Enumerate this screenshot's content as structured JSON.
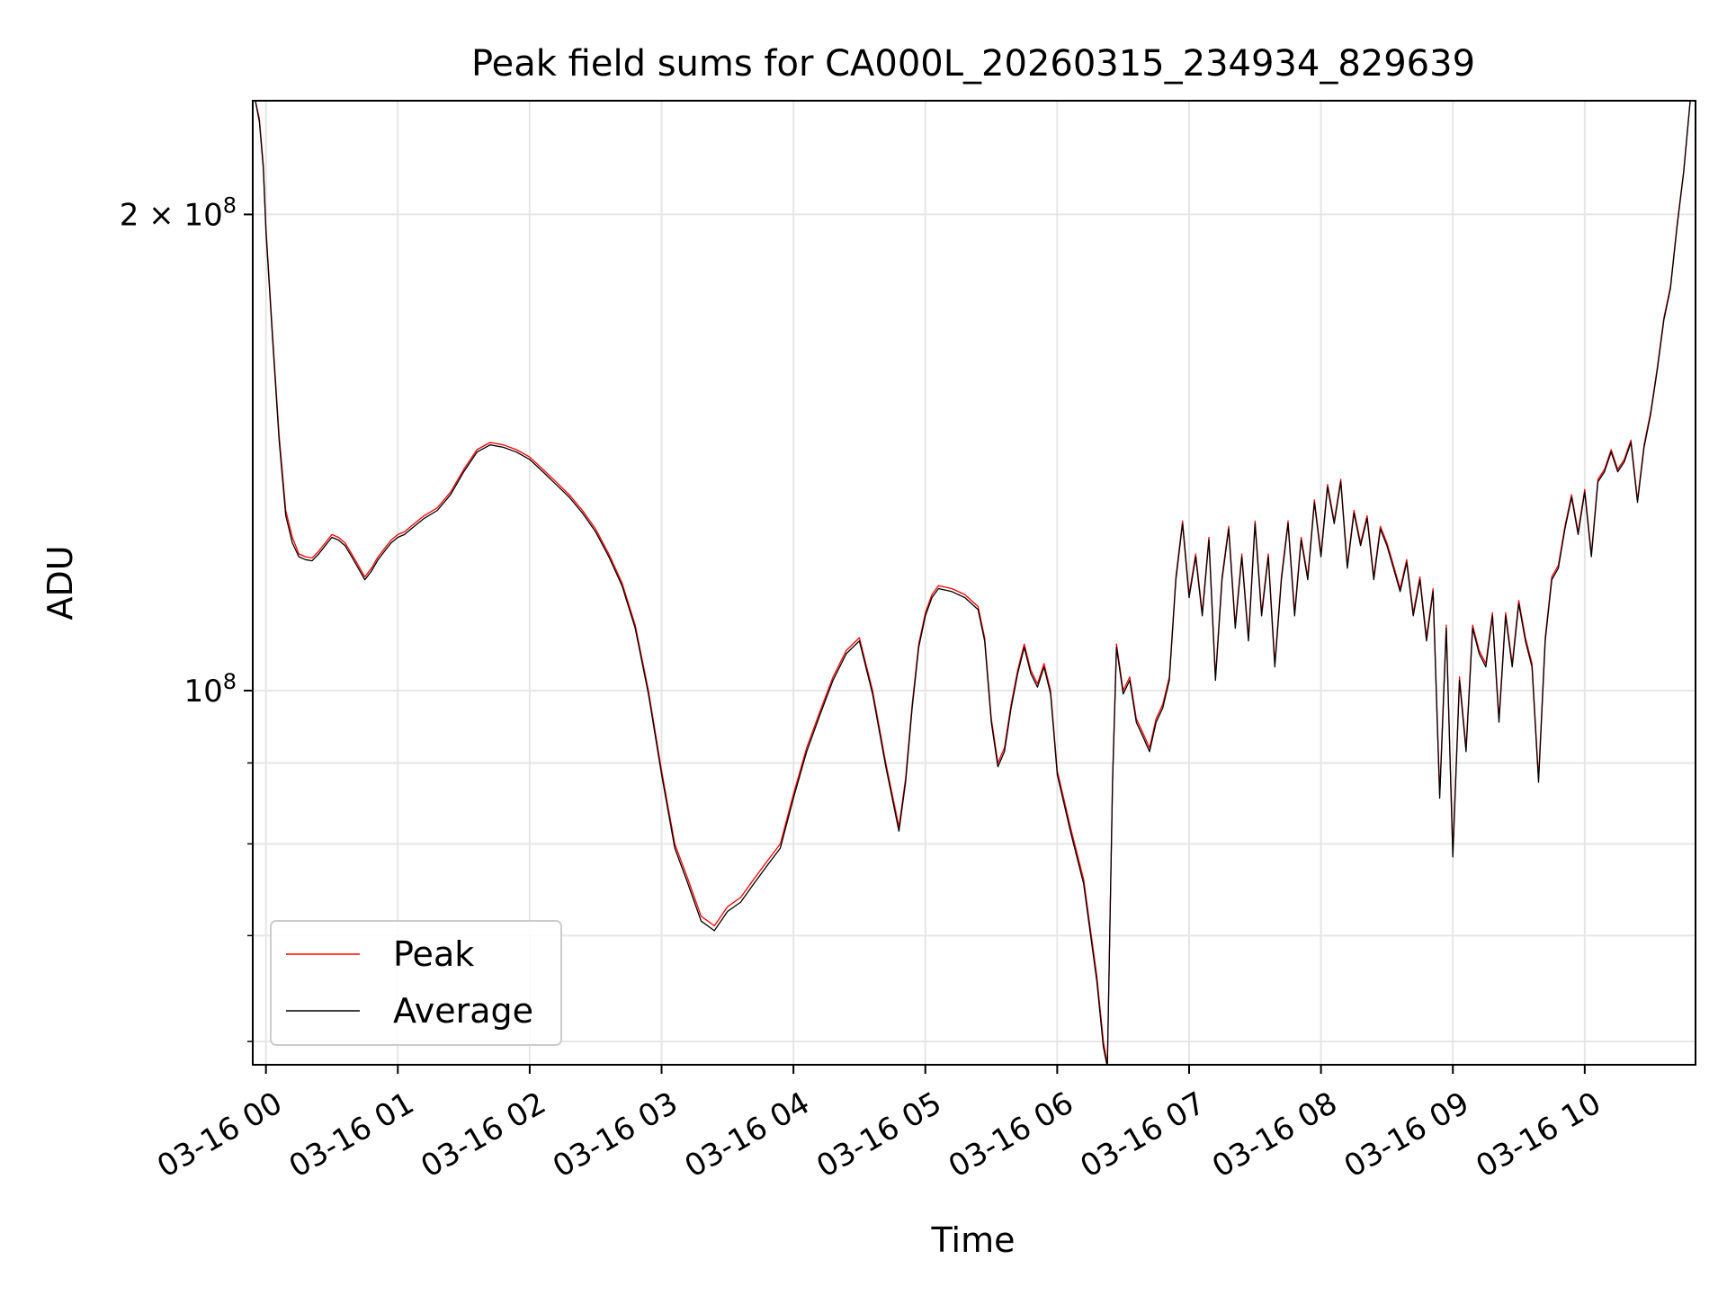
{
  "chart_data": {
    "type": "line",
    "title": "Peak field sums for CA000L_20260315_234934_829639",
    "xlabel": "Time",
    "ylabel": "ADU",
    "yscale": "log",
    "xlim": [
      -0.1,
      10.84
    ],
    "ylim": [
      58000000,
      236000000
    ],
    "grid": true,
    "x_unit": "hours since 03-16 00:00",
    "x_ticks": [
      {
        "value": 0,
        "label": "03-16 00"
      },
      {
        "value": 1,
        "label": "03-16 01"
      },
      {
        "value": 2,
        "label": "03-16 02"
      },
      {
        "value": 3,
        "label": "03-16 03"
      },
      {
        "value": 4,
        "label": "03-16 04"
      },
      {
        "value": 5,
        "label": "03-16 05"
      },
      {
        "value": 6,
        "label": "03-16 06"
      },
      {
        "value": 7,
        "label": "03-16 07"
      },
      {
        "value": 8,
        "label": "03-16 08"
      },
      {
        "value": 9,
        "label": "03-16 09"
      },
      {
        "value": 10,
        "label": "03-16 10"
      }
    ],
    "y_major_ticks": [
      {
        "value": 100000000,
        "base": "10",
        "exp": "8",
        "coef": ""
      },
      {
        "value": 200000000,
        "base": "10",
        "exp": "8",
        "coef": "2 × "
      }
    ],
    "y_minor_ticks": [
      60000000,
      70000000,
      80000000,
      90000000
    ],
    "legend_position": "lower-left",
    "series": [
      {
        "name": "Peak",
        "color": "#ff0000",
        "x": [
          -0.08,
          -0.05,
          -0.02,
          0.0,
          0.05,
          0.1,
          0.15,
          0.2,
          0.25,
          0.3,
          0.35,
          0.4,
          0.45,
          0.5,
          0.55,
          0.6,
          0.65,
          0.7,
          0.75,
          0.8,
          0.85,
          0.9,
          0.95,
          1.0,
          1.05,
          1.1,
          1.15,
          1.2,
          1.3,
          1.4,
          1.5,
          1.6,
          1.7,
          1.8,
          1.9,
          2.0,
          2.1,
          2.2,
          2.3,
          2.4,
          2.5,
          2.6,
          2.7,
          2.8,
          2.9,
          3.0,
          3.1,
          3.2,
          3.3,
          3.4,
          3.5,
          3.6,
          3.7,
          3.8,
          3.9,
          4.0,
          4.1,
          4.2,
          4.3,
          4.4,
          4.5,
          4.6,
          4.7,
          4.8,
          4.85,
          4.9,
          4.95,
          5.0,
          5.05,
          5.1,
          5.2,
          5.3,
          5.4,
          5.45,
          5.5,
          5.55,
          5.6,
          5.65,
          5.7,
          5.75,
          5.8,
          5.85,
          5.9,
          5.95,
          6.0,
          6.1,
          6.2,
          6.3,
          6.35,
          6.38,
          6.42,
          6.45,
          6.5,
          6.55,
          6.6,
          6.65,
          6.7,
          6.75,
          6.8,
          6.85,
          6.9,
          6.95,
          7.0,
          7.05,
          7.1,
          7.15,
          7.2,
          7.25,
          7.3,
          7.35,
          7.4,
          7.45,
          7.5,
          7.55,
          7.6,
          7.65,
          7.7,
          7.75,
          7.8,
          7.85,
          7.9,
          7.95,
          8.0,
          8.05,
          8.1,
          8.15,
          8.2,
          8.25,
          8.3,
          8.35,
          8.4,
          8.45,
          8.5,
          8.55,
          8.6,
          8.65,
          8.7,
          8.75,
          8.8,
          8.85,
          8.9,
          8.95,
          9.0,
          9.05,
          9.1,
          9.15,
          9.2,
          9.25,
          9.3,
          9.35,
          9.4,
          9.45,
          9.5,
          9.55,
          9.6,
          9.65,
          9.7,
          9.75,
          9.8,
          9.85,
          9.9,
          9.95,
          10.0,
          10.05,
          10.1,
          10.15,
          10.2,
          10.25,
          10.3,
          10.35,
          10.4,
          10.45,
          10.5,
          10.55,
          10.6,
          10.65,
          10.7,
          10.75,
          10.8,
          10.84
        ],
        "y": [
          236000000,
          230000000,
          215000000,
          196000000,
          168000000,
          145000000,
          130000000,
          125000000,
          122000000,
          121500000,
          121300000,
          122500000,
          124000000,
          125500000,
          125000000,
          124000000,
          122000000,
          120000000,
          118000000,
          119500000,
          121500000,
          123000000,
          124500000,
          125500000,
          126000000,
          127000000,
          128000000,
          129000000,
          130500000,
          133500000,
          138000000,
          142000000,
          143500000,
          143000000,
          142000000,
          140500000,
          138000000,
          135500000,
          133000000,
          130000000,
          126500000,
          122000000,
          117000000,
          110000000,
          100000000,
          89000000,
          80000000,
          76000000,
          72000000,
          71000000,
          73000000,
          74000000,
          76000000,
          78000000,
          80000000,
          86000000,
          92000000,
          97000000,
          102000000,
          106000000,
          108000000,
          100000000,
          90000000,
          82000000,
          88000000,
          98000000,
          107000000,
          112000000,
          115000000,
          116500000,
          116000000,
          115000000,
          113000000,
          108000000,
          96000000,
          90000000,
          92000000,
          98000000,
          103000000,
          107000000,
          103000000,
          101000000,
          104000000,
          100000000,
          89000000,
          82000000,
          76000000,
          66000000,
          60000000,
          58000000,
          88000000,
          107000000,
          100000000,
          102000000,
          96000000,
          94000000,
          92000000,
          96000000,
          98000000,
          102000000,
          118000000,
          128000000,
          115000000,
          122000000,
          112000000,
          125000000,
          102000000,
          118000000,
          127000000,
          110000000,
          122000000,
          108000000,
          128000000,
          112000000,
          122000000,
          104000000,
          118000000,
          128000000,
          112000000,
          125000000,
          118000000,
          132000000,
          122000000,
          135000000,
          128000000,
          136000000,
          120000000,
          130000000,
          124000000,
          129000000,
          118000000,
          127000000,
          124000000,
          120000000,
          116000000,
          121000000,
          112000000,
          118000000,
          108000000,
          116000000,
          86000000,
          110000000,
          79000000,
          102000000,
          92000000,
          110000000,
          106000000,
          104000000,
          112000000,
          96000000,
          112000000,
          104000000,
          114000000,
          108000000,
          104000000,
          88000000,
          108000000,
          118000000,
          120000000,
          127000000,
          133000000,
          126000000,
          134000000,
          122000000,
          136000000,
          138000000,
          142000000,
          138000000,
          140000000,
          144000000,
          132000000,
          143000000,
          150000000,
          160000000,
          172000000,
          180000000,
          197000000,
          213000000,
          236000000,
          236000000
        ]
      },
      {
        "name": "Average",
        "color": "#000000",
        "x": [
          -0.08,
          -0.05,
          -0.02,
          0.0,
          0.05,
          0.1,
          0.15,
          0.2,
          0.25,
          0.3,
          0.35,
          0.4,
          0.45,
          0.5,
          0.55,
          0.6,
          0.65,
          0.7,
          0.75,
          0.8,
          0.85,
          0.9,
          0.95,
          1.0,
          1.05,
          1.1,
          1.15,
          1.2,
          1.3,
          1.4,
          1.5,
          1.6,
          1.7,
          1.8,
          1.9,
          2.0,
          2.1,
          2.2,
          2.3,
          2.4,
          2.5,
          2.6,
          2.7,
          2.8,
          2.9,
          3.0,
          3.1,
          3.2,
          3.3,
          3.4,
          3.5,
          3.6,
          3.7,
          3.8,
          3.9,
          4.0,
          4.1,
          4.2,
          4.3,
          4.4,
          4.5,
          4.6,
          4.7,
          4.8,
          4.85,
          4.9,
          4.95,
          5.0,
          5.05,
          5.1,
          5.2,
          5.3,
          5.4,
          5.45,
          5.5,
          5.55,
          5.6,
          5.65,
          5.7,
          5.75,
          5.8,
          5.85,
          5.9,
          5.95,
          6.0,
          6.1,
          6.2,
          6.3,
          6.35,
          6.38,
          6.42,
          6.45,
          6.5,
          6.55,
          6.6,
          6.65,
          6.7,
          6.75,
          6.8,
          6.85,
          6.9,
          6.95,
          7.0,
          7.05,
          7.1,
          7.15,
          7.2,
          7.25,
          7.3,
          7.35,
          7.4,
          7.45,
          7.5,
          7.55,
          7.6,
          7.65,
          7.7,
          7.75,
          7.8,
          7.85,
          7.9,
          7.95,
          8.0,
          8.05,
          8.1,
          8.15,
          8.2,
          8.25,
          8.3,
          8.35,
          8.4,
          8.45,
          8.5,
          8.55,
          8.6,
          8.65,
          8.7,
          8.75,
          8.8,
          8.85,
          8.9,
          8.95,
          9.0,
          9.05,
          9.1,
          9.15,
          9.2,
          9.25,
          9.3,
          9.35,
          9.4,
          9.45,
          9.5,
          9.55,
          9.6,
          9.65,
          9.7,
          9.75,
          9.8,
          9.85,
          9.9,
          9.95,
          10.0,
          10.05,
          10.1,
          10.15,
          10.2,
          10.25,
          10.3,
          10.35,
          10.4,
          10.45,
          10.5,
          10.55,
          10.6,
          10.65,
          10.7,
          10.75,
          10.8,
          10.84
        ],
        "y": [
          236000000,
          229000000,
          214000000,
          195000000,
          167000000,
          144000000,
          129000000,
          124000000,
          121500000,
          121000000,
          120800000,
          122000000,
          123500000,
          125000000,
          124500000,
          123500000,
          121500000,
          119500000,
          117500000,
          119000000,
          121000000,
          122500000,
          124000000,
          125000000,
          125500000,
          126500000,
          127500000,
          128500000,
          130000000,
          133000000,
          137500000,
          141500000,
          143000000,
          142500000,
          141500000,
          140000000,
          137500000,
          135000000,
          132500000,
          129500000,
          126000000,
          121500000,
          116500000,
          109500000,
          99500000,
          88500000,
          79500000,
          75500000,
          71500000,
          70500000,
          72500000,
          73500000,
          75500000,
          77500000,
          79500000,
          85500000,
          91500000,
          96500000,
          101500000,
          105500000,
          107500000,
          99500000,
          89500000,
          81500000,
          87500000,
          97500000,
          106500000,
          111500000,
          114500000,
          116000000,
          115500000,
          114500000,
          112500000,
          107500000,
          95500000,
          89500000,
          91500000,
          97500000,
          102500000,
          106500000,
          102500000,
          100500000,
          103500000,
          99500000,
          88500000,
          81500000,
          75500000,
          65500000,
          59500000,
          57800000,
          87500000,
          106500000,
          99500000,
          101500000,
          95500000,
          93500000,
          91500000,
          95500000,
          97500000,
          101500000,
          117500000,
          127500000,
          114500000,
          121500000,
          111500000,
          124500000,
          101500000,
          117500000,
          126500000,
          109500000,
          121500000,
          107500000,
          127500000,
          111500000,
          121500000,
          103500000,
          117500000,
          127500000,
          111500000,
          124500000,
          117500000,
          131500000,
          121500000,
          134500000,
          127500000,
          135500000,
          119500000,
          129500000,
          123500000,
          128500000,
          117500000,
          126500000,
          123500000,
          119500000,
          115500000,
          120500000,
          111500000,
          117500000,
          107500000,
          115500000,
          85500000,
          109500000,
          78500000,
          101500000,
          91500000,
          109500000,
          105500000,
          103500000,
          111500000,
          95500000,
          111500000,
          103500000,
          113500000,
          107500000,
          103500000,
          87500000,
          107500000,
          117500000,
          119500000,
          126500000,
          132500000,
          125500000,
          133500000,
          121500000,
          135500000,
          137500000,
          141500000,
          137500000,
          139500000,
          143500000,
          131500000,
          142500000,
          149500000,
          159500000,
          171500000,
          179500000,
          196500000,
          212500000,
          236000000,
          236000000
        ]
      }
    ]
  }
}
